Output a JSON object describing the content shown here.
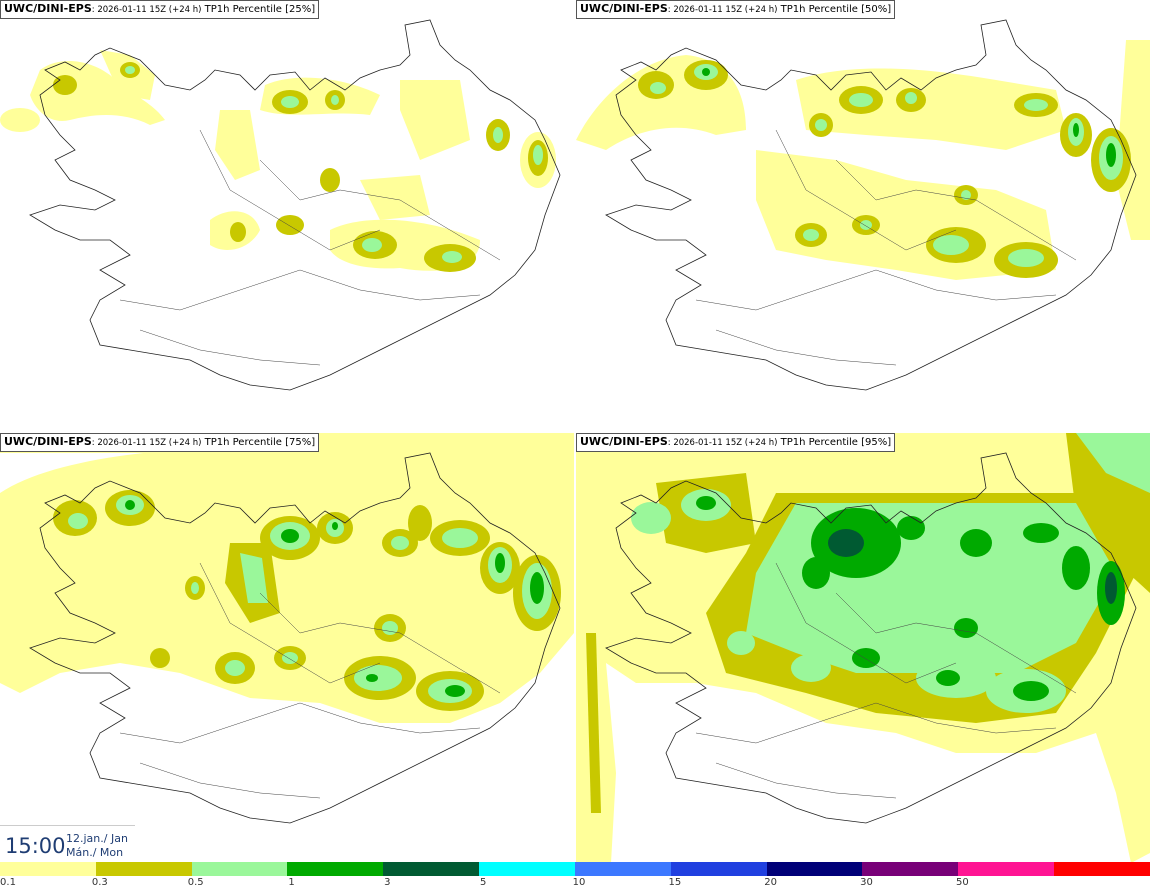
{
  "panels": [
    {
      "model": "UWC/DINI-EPS",
      "run": ": 2026-01-11 15Z (+24 h)",
      "field": " TP1h Percentile [25%]"
    },
    {
      "model": "UWC/DINI-EPS",
      "run": ": 2026-01-11 15Z (+24 h)",
      "field": " TP1h Percentile [50%]"
    },
    {
      "model": "UWC/DINI-EPS",
      "run": ": 2026-01-11 15Z (+24 h)",
      "field": " TP1h Percentile [75%]"
    },
    {
      "model": "UWC/DINI-EPS",
      "run": ": 2026-01-11 15Z (+24 h)",
      "field": " TP1h Percentile [95%]"
    }
  ],
  "valid_time": {
    "hour": "15:00",
    "date_line1": "12.jan./ Jan",
    "date_line2": "Mán./ Mon"
  },
  "legend": {
    "colors": [
      "#ffff9a",
      "#c8c800",
      "#9af79a",
      "#00aa00",
      "#005a32",
      "#00ffff",
      "#3c78ff",
      "#2040e0",
      "#000078",
      "#780078",
      "#ff1493",
      "#ff0000"
    ],
    "ticks": [
      "0.1",
      "0.3",
      "0.5",
      "1",
      "3",
      "5",
      "10",
      "15",
      "20",
      "30",
      "50"
    ]
  }
}
